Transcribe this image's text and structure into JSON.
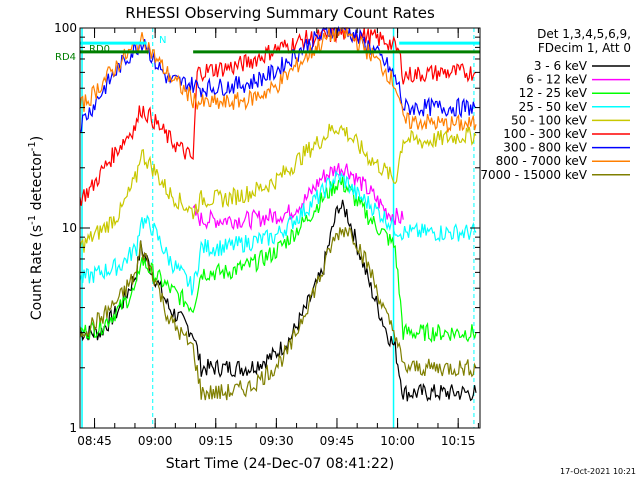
{
  "window": {
    "footer_date": "17-Oct-2021 10:21"
  },
  "chart_data": {
    "type": "line",
    "title": "RHESSI Observing Summary Count Rates",
    "xlabel": "Start Time (24-Dec-07 08:41:22)",
    "ylabel": "Count Rate (s",
    "ylabel_sup": "-1",
    "ylabel_tail": " detector",
    "ylabel_sup2": "-1",
    "ylabel_end": ")",
    "yscale": "log",
    "ylim": [
      1,
      100
    ],
    "xlim": [
      0,
      99
    ],
    "y_ticks": [
      {
        "value": 100,
        "label": "100"
      },
      {
        "value": 10,
        "label": "10"
      },
      {
        "value": 1,
        "label": "1"
      }
    ],
    "x_ticks": [
      {
        "value": 3.6,
        "label": "08:45"
      },
      {
        "value": 18.6,
        "label": "09:00"
      },
      {
        "value": 33.6,
        "label": "09:15"
      },
      {
        "value": 48.6,
        "label": "09:30"
      },
      {
        "value": 63.6,
        "label": "09:45"
      },
      {
        "value": 78.6,
        "label": "10:00"
      },
      {
        "value": 93.6,
        "label": "10:15"
      }
    ],
    "x_minor_step": 5,
    "legend": {
      "position": "right",
      "header_1": "Det 1,3,4,5,6,9,",
      "header_2": "FDecim 1, Att 0"
    },
    "annotations": {
      "rd0": "RD0",
      "rd4": "RD4",
      "n": "N"
    },
    "flags": {
      "rd0": {
        "color": "#00ffff",
        "segments": [
          [
            0,
            16.5
          ],
          [
            79,
            99
          ]
        ],
        "y": 84
      },
      "rd4": {
        "color": "#007f00",
        "segments": [
          [
            0,
            17
          ],
          [
            28,
            99
          ]
        ],
        "y": 76
      }
    },
    "vlines_dashed": [
      {
        "x": 18,
        "color": "#00ffff"
      },
      {
        "x": 97.5,
        "color": "#00ffff"
      }
    ],
    "vlines_solid": [
      {
        "x": 0.5,
        "color": "#00ffff"
      },
      {
        "x": 77.6,
        "color": "#00ffff"
      }
    ],
    "series": [
      {
        "name": "3 - 6 keV",
        "color": "#000000",
        "x": [
          0,
          5,
          10,
          14,
          15,
          18,
          22,
          28,
          30,
          36,
          42,
          48,
          52,
          56,
          60,
          62,
          64,
          66,
          68,
          72,
          76,
          78,
          80,
          85,
          90,
          95,
          98
        ],
        "values": [
          3,
          3,
          4,
          6,
          8,
          6,
          4,
          3,
          2,
          2,
          2,
          2.3,
          2.8,
          4,
          6,
          9,
          13,
          12,
          9,
          5,
          3,
          2.5,
          1.5,
          1.5,
          1.5,
          1.5,
          1.5
        ]
      },
      {
        "name": "6 - 12 keV",
        "color": "#ff00ff",
        "x": [
          28,
          30,
          36,
          42,
          48,
          52,
          56,
          60,
          62,
          64,
          66,
          68,
          72,
          76,
          80
        ],
        "values": [
          12,
          11,
          11,
          11,
          11.5,
          12,
          14,
          18,
          19,
          20,
          20,
          18,
          15,
          12,
          11
        ]
      },
      {
        "name": "12 - 25 keV",
        "color": "#00ff00",
        "x": [
          0,
          5,
          10,
          14,
          15,
          18,
          22,
          28,
          30,
          36,
          42,
          48,
          52,
          56,
          60,
          62,
          64,
          66,
          68,
          72,
          76,
          78,
          80,
          85,
          90,
          95,
          98
        ],
        "values": [
          3,
          3.2,
          4,
          5,
          7,
          6,
          5,
          4,
          6,
          6,
          6.5,
          7.5,
          9,
          11,
          14,
          15.5,
          17,
          16,
          14,
          11,
          9,
          8,
          3,
          3,
          3,
          3,
          3
        ]
      },
      {
        "name": "25 - 50 keV",
        "color": "#00ffff",
        "x": [
          0,
          5,
          10,
          14,
          15,
          18,
          22,
          28,
          30,
          36,
          42,
          48,
          52,
          56,
          60,
          62,
          64,
          66,
          68,
          72,
          76,
          78,
          80,
          85,
          90,
          95,
          98
        ],
        "values": [
          5.5,
          6,
          6.5,
          8,
          11,
          10,
          7,
          5,
          8,
          8,
          8.5,
          9,
          10.5,
          12.5,
          15,
          17,
          18,
          17,
          15,
          13,
          11,
          10,
          9.5,
          9.5,
          9.5,
          9.5,
          9.5
        ]
      },
      {
        "name": "50 - 100 keV",
        "color": "#c8c800",
        "x": [
          0,
          3,
          6,
          10,
          14,
          15,
          18,
          22,
          28,
          30,
          36,
          42,
          48,
          52,
          56,
          60,
          62,
          64,
          66,
          68,
          72,
          76,
          78,
          80,
          85,
          90,
          95,
          98
        ],
        "values": [
          8,
          9,
          10,
          12,
          18,
          24,
          20,
          15,
          12,
          14,
          14,
          15,
          17,
          20,
          24,
          28,
          31,
          32,
          30,
          27,
          22,
          19,
          17,
          28,
          27,
          28,
          29,
          29
        ]
      },
      {
        "name": "100 - 300 keV",
        "color": "#ff0000",
        "x": [
          0,
          3,
          6,
          10,
          14,
          15,
          18,
          22,
          28,
          29,
          33,
          38,
          42,
          46,
          48,
          52,
          56,
          60,
          62,
          64,
          66,
          68,
          72,
          74,
          76,
          78,
          79,
          80,
          85,
          90,
          95,
          98
        ],
        "values": [
          14,
          16,
          20,
          26,
          33,
          40,
          35,
          28,
          22,
          60,
          62,
          64,
          68,
          74,
          78,
          82,
          88,
          90,
          92,
          94,
          94,
          93,
          90,
          88,
          86,
          80,
          75,
          58,
          59,
          60,
          60,
          60
        ]
      },
      {
        "name": "300 - 800 keV",
        "color": "#0000ff",
        "x": [
          0,
          3,
          6,
          10,
          14,
          16,
          18,
          22,
          28,
          30,
          36,
          42,
          48,
          52,
          56,
          60,
          62,
          64,
          66,
          68,
          72,
          76,
          78,
          79,
          80,
          85,
          90,
          95,
          98
        ],
        "values": [
          33,
          40,
          50,
          65,
          80,
          88,
          70,
          55,
          52,
          50,
          51,
          53,
          60,
          70,
          82,
          92,
          98,
          100,
          98,
          92,
          80,
          65,
          56,
          50,
          40,
          40,
          40,
          40,
          40
        ]
      },
      {
        "name": "800 - 7000 keV",
        "color": "#ff7f00",
        "x": [
          0,
          3,
          6,
          10,
          14,
          16,
          18,
          22,
          28,
          30,
          36,
          42,
          48,
          52,
          56,
          60,
          62,
          64,
          66,
          68,
          72,
          76,
          78,
          79,
          80,
          85,
          90,
          95,
          98
        ],
        "values": [
          40,
          46,
          55,
          68,
          82,
          88,
          74,
          58,
          44,
          42,
          42,
          44,
          50,
          60,
          72,
          85,
          92,
          95,
          93,
          88,
          74,
          60,
          52,
          45,
          34,
          34,
          33,
          33,
          33
        ]
      },
      {
        "name": "7000 - 15000 keV",
        "color": "#7f7f00",
        "x": [
          0,
          5,
          10,
          14,
          15,
          18,
          22,
          28,
          30,
          36,
          42,
          48,
          52,
          56,
          60,
          62,
          64,
          66,
          68,
          72,
          76,
          78,
          80,
          85,
          90,
          95,
          98
        ],
        "values": [
          3,
          3.5,
          4.5,
          6,
          8,
          6,
          3.5,
          2.5,
          1.5,
          1.5,
          1.6,
          2,
          2.5,
          4,
          6,
          8,
          9.5,
          10,
          9,
          6,
          3.5,
          3,
          2,
          2,
          2,
          2,
          2
        ]
      }
    ]
  }
}
